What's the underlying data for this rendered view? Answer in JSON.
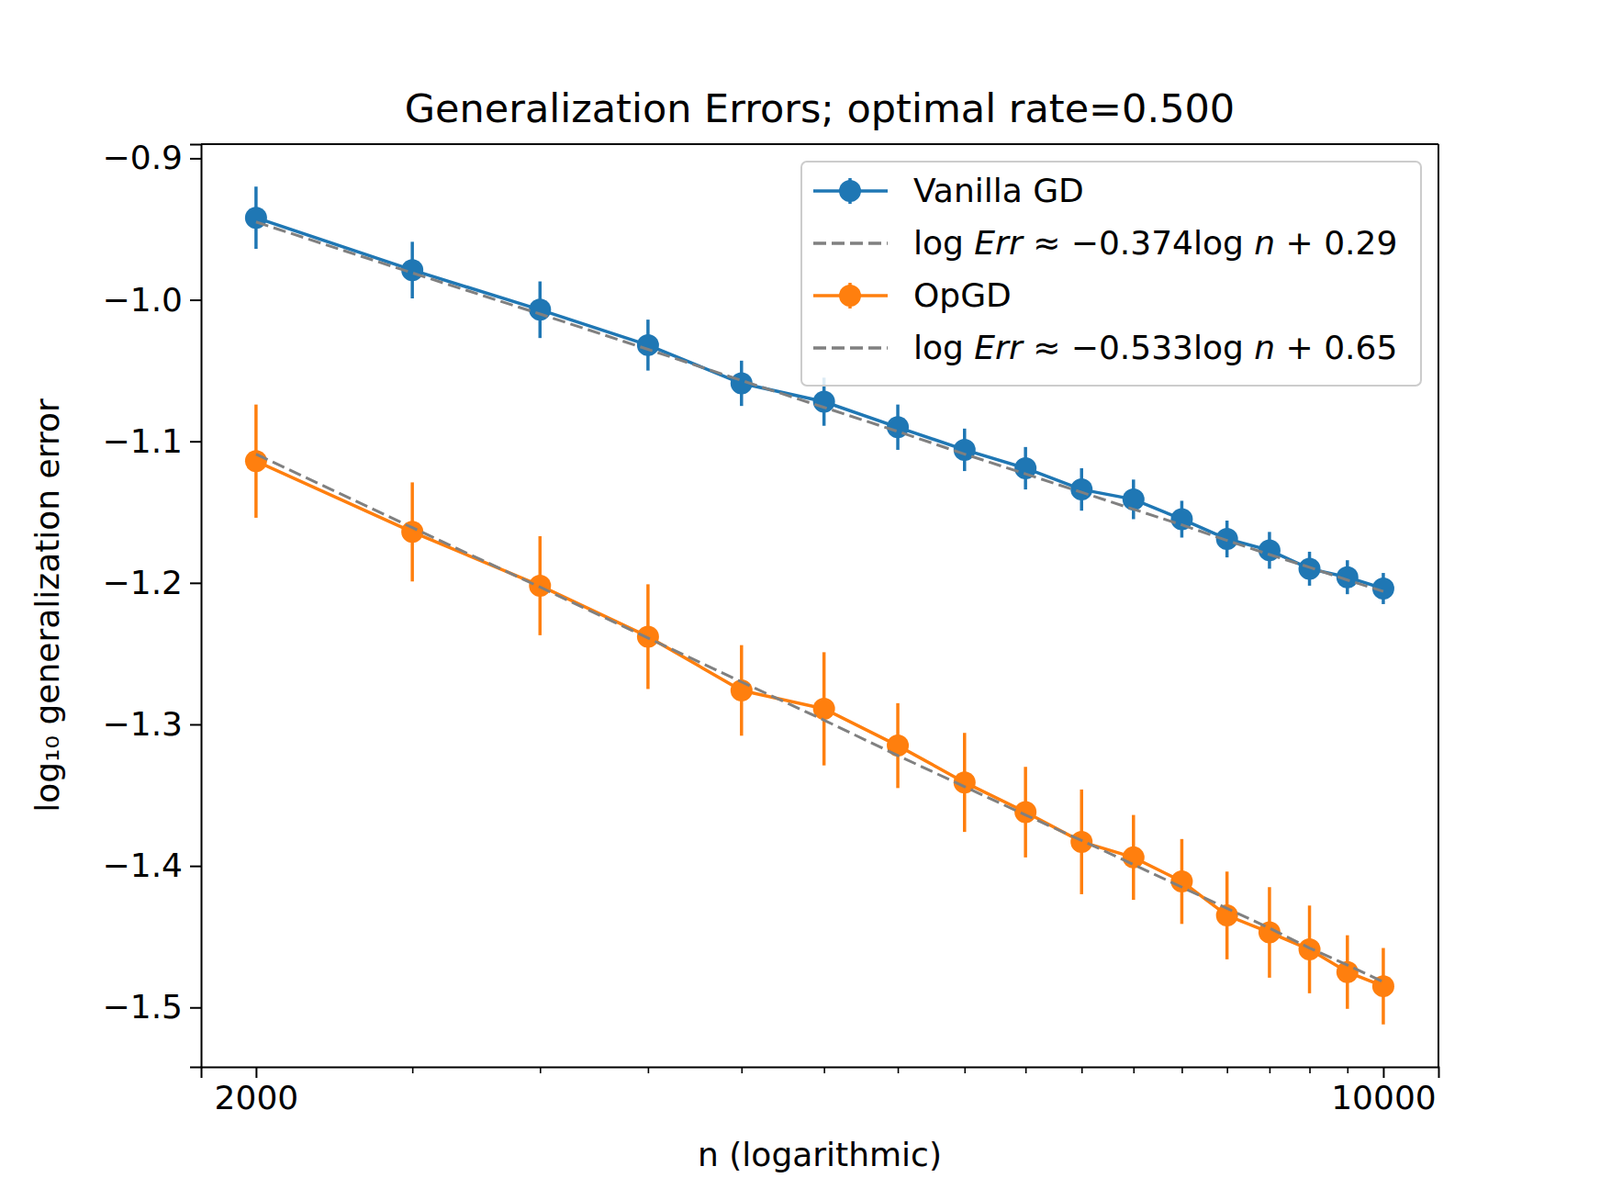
{
  "chart_data": {
    "type": "line",
    "title": "Generalization Errors; optimal rate=0.500",
    "x_label": "n (logarithmic)",
    "y_label": "log₁₀ generalization error",
    "log": "x",
    "grid": false,
    "legend": "upper right",
    "x": [
      2000,
      2500,
      3000,
      3500,
      4000,
      4500,
      5000,
      5500,
      6000,
      6500,
      7000,
      7500,
      8000,
      8500,
      9000,
      9500,
      10000
    ],
    "xlim": [
      1849,
      10819
    ],
    "xticks": [
      2000,
      10000
    ],
    "xminor_ticks": [
      2500,
      3000,
      3500,
      4000,
      4500,
      5000,
      5500,
      6000,
      6500,
      7000,
      7500,
      8000,
      8500,
      9000,
      9500
    ],
    "ylim": [
      -1.542,
      -0.89
    ],
    "yticks": [
      {
        "value": -0.9,
        "label": "−0.9"
      },
      {
        "value": -1.0,
        "label": "−1.0"
      },
      {
        "value": -1.1,
        "label": "−1.1"
      },
      {
        "value": -1.2,
        "label": "−1.2"
      },
      {
        "value": -1.3,
        "label": "−1.3"
      },
      {
        "value": -1.4,
        "label": "−1.4"
      },
      {
        "value": -1.5,
        "label": "−1.5"
      }
    ],
    "series": [
      {
        "name": "Vanilla GD",
        "color": "#1f77b4",
        "marker": "circle",
        "line_style": "solid",
        "values": [
          -0.942,
          -0.979,
          -1.007,
          -1.032,
          -1.059,
          -1.072,
          -1.09,
          -1.106,
          -1.119,
          -1.134,
          -1.141,
          -1.155,
          -1.169,
          -1.177,
          -1.19,
          -1.196,
          -1.204
        ],
        "error": [
          0.022,
          0.02,
          0.02,
          0.018,
          0.016,
          0.017,
          0.016,
          0.015,
          0.015,
          0.015,
          0.014,
          0.013,
          0.013,
          0.013,
          0.012,
          0.012,
          0.011
        ]
      },
      {
        "name": "log Err ≈ −0.374log n + 0.29",
        "color": "#808080",
        "marker": "none",
        "line_style": "dashed",
        "values": [
          -0.945,
          -0.981,
          -1.01,
          -1.035,
          -1.057,
          -1.076,
          -1.093,
          -1.109,
          -1.123,
          -1.136,
          -1.148,
          -1.159,
          -1.17,
          -1.18,
          -1.189,
          -1.198,
          -1.206
        ]
      },
      {
        "name": "OpGD",
        "color": "#ff7f0e",
        "marker": "circle",
        "line_style": "solid",
        "values": [
          -1.114,
          -1.164,
          -1.202,
          -1.238,
          -1.276,
          -1.289,
          -1.315,
          -1.341,
          -1.362,
          -1.383,
          -1.394,
          -1.411,
          -1.435,
          -1.447,
          -1.459,
          -1.475,
          -1.485
        ],
        "error": [
          0.04,
          0.035,
          0.035,
          0.037,
          0.032,
          0.04,
          0.03,
          0.035,
          0.032,
          0.037,
          0.03,
          0.03,
          0.031,
          0.032,
          0.031,
          0.026,
          0.027
        ]
      },
      {
        "name": "log Err ≈ −0.533log n + 0.65",
        "color": "#808080",
        "marker": "none",
        "line_style": "dashed",
        "values": [
          -1.109,
          -1.161,
          -1.203,
          -1.239,
          -1.27,
          -1.297,
          -1.322,
          -1.344,
          -1.364,
          -1.382,
          -1.399,
          -1.415,
          -1.43,
          -1.444,
          -1.458,
          -1.47,
          -1.482
        ]
      }
    ]
  }
}
